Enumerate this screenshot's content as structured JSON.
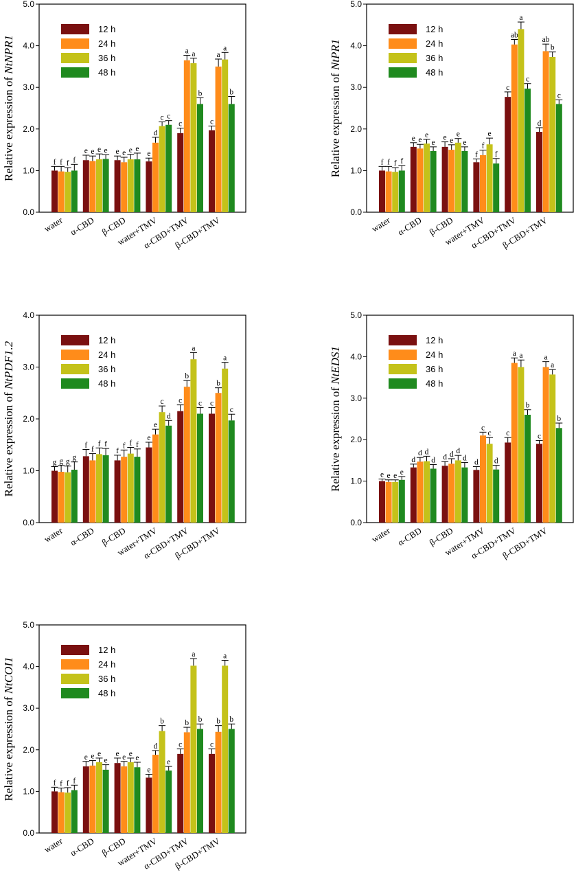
{
  "legend": [
    "12 h",
    "24 h",
    "36 h",
    "48 h"
  ],
  "colors": [
    "#7a1010",
    "#ff8c1a",
    "#c4c21a",
    "#1f8a1f"
  ],
  "chart_data": [
    {
      "type": "bar",
      "ylabel_prefix": "Relative expression of ",
      "gene": "NtNPR1",
      "ylim": [
        0,
        5
      ],
      "yticks": [
        "0.0",
        "1.0",
        "2.0",
        "3.0",
        "4.0",
        "5.0"
      ],
      "categories": [
        "water",
        "α-CBD",
        "β-CBD",
        "water+TMV",
        "α-CBD+TMV",
        "β-CBD+TMV"
      ],
      "series": [
        {
          "name": "12 h",
          "values": [
            1.0,
            1.25,
            1.25,
            1.22,
            1.9,
            1.97
          ],
          "errors": [
            0.1,
            0.12,
            0.1,
            0.08,
            0.12,
            0.1
          ],
          "letters": [
            "f",
            "e",
            "e",
            "e",
            "c",
            "c"
          ]
        },
        {
          "name": "24 h",
          "values": [
            0.98,
            1.23,
            1.2,
            1.67,
            3.65,
            3.5
          ],
          "errors": [
            0.12,
            0.12,
            0.12,
            0.13,
            0.12,
            0.18
          ],
          "letters": [
            "f",
            "e",
            "e",
            "d",
            "a",
            "a"
          ]
        },
        {
          "name": "36 h",
          "values": [
            0.97,
            1.27,
            1.27,
            2.07,
            3.58,
            3.67
          ],
          "errors": [
            0.1,
            0.13,
            0.12,
            0.1,
            0.12,
            0.17
          ],
          "letters": [
            "f",
            "e",
            "e",
            "c",
            "a",
            "a"
          ]
        },
        {
          "name": "48 h",
          "values": [
            1.0,
            1.28,
            1.27,
            2.1,
            2.6,
            2.6
          ],
          "errors": [
            0.15,
            0.1,
            0.15,
            0.1,
            0.15,
            0.18
          ],
          "letters": [
            "f",
            "e",
            "e",
            "c",
            "b",
            "b"
          ]
        }
      ]
    },
    {
      "type": "bar",
      "ylabel_prefix": "Relative expression of ",
      "gene": "NtPR1",
      "ylim": [
        0,
        5
      ],
      "yticks": [
        "0.0",
        "1.0",
        "2.0",
        "3.0",
        "4.0",
        "5.0"
      ],
      "categories": [
        "water",
        "α-CBD",
        "β-CBD",
        "water+TMV",
        "α-CBD+TMV",
        "β-CBD+TMV"
      ],
      "series": [
        {
          "name": "12 h",
          "values": [
            1.0,
            1.57,
            1.57,
            1.2,
            2.77,
            1.93
          ],
          "errors": [
            0.1,
            0.1,
            0.12,
            0.08,
            0.12,
            0.1
          ],
          "letters": [
            "f",
            "e",
            "e",
            "f",
            "c",
            "d"
          ]
        },
        {
          "name": "24 h",
          "values": [
            0.98,
            1.53,
            1.5,
            1.37,
            4.03,
            3.87
          ],
          "errors": [
            0.12,
            0.1,
            0.12,
            0.12,
            0.12,
            0.17
          ],
          "letters": [
            "f",
            "e",
            "e",
            "f",
            "ab",
            "ab"
          ]
        },
        {
          "name": "36 h",
          "values": [
            0.97,
            1.65,
            1.67,
            1.63,
            4.4,
            3.73
          ],
          "errors": [
            0.1,
            0.1,
            0.1,
            0.15,
            0.17,
            0.12
          ],
          "letters": [
            "f",
            "e",
            "e",
            "e",
            "a",
            "b"
          ]
        },
        {
          "name": "48 h",
          "values": [
            1.0,
            1.47,
            1.47,
            1.17,
            2.97,
            2.6
          ],
          "errors": [
            0.12,
            0.1,
            0.1,
            0.12,
            0.12,
            0.1
          ],
          "letters": [
            "f",
            "e",
            "e",
            "f",
            "c",
            "c"
          ]
        }
      ]
    },
    {
      "type": "bar",
      "ylabel_prefix": "Relative expression of ",
      "gene": "NtPDF1.2",
      "ylim": [
        0,
        4
      ],
      "yticks": [
        "0.0",
        "1.0",
        "2.0",
        "3.0",
        "4.0"
      ],
      "categories": [
        "water",
        "α-CBD",
        "β-CBD",
        "water+TMV",
        "α-CBD+TMV",
        "β-CBD+TMV"
      ],
      "series": [
        {
          "name": "12 h",
          "values": [
            1.0,
            1.28,
            1.2,
            1.45,
            2.15,
            2.1
          ],
          "errors": [
            0.08,
            0.13,
            0.1,
            0.1,
            0.12,
            0.12
          ],
          "letters": [
            "g",
            "f",
            "f",
            "e",
            "c",
            "c"
          ]
        },
        {
          "name": "24 h",
          "values": [
            0.98,
            1.2,
            1.27,
            1.7,
            2.62,
            2.5
          ],
          "errors": [
            0.12,
            0.13,
            0.13,
            0.1,
            0.12,
            0.1
          ],
          "letters": [
            "g",
            "f",
            "f",
            "e",
            "b",
            "b"
          ]
        },
        {
          "name": "36 h",
          "values": [
            0.97,
            1.32,
            1.33,
            2.13,
            3.15,
            2.97
          ],
          "errors": [
            0.12,
            0.12,
            0.12,
            0.12,
            0.13,
            0.12
          ],
          "letters": [
            "g",
            "f",
            "f",
            "c",
            "a",
            "a"
          ]
        },
        {
          "name": "48 h",
          "values": [
            1.02,
            1.3,
            1.27,
            1.87,
            2.1,
            1.97
          ],
          "errors": [
            0.15,
            0.13,
            0.15,
            0.1,
            0.12,
            0.12
          ],
          "letters": [
            "g",
            "f",
            "f",
            "d",
            "c",
            "c"
          ]
        }
      ]
    },
    {
      "type": "bar",
      "ylabel_prefix": "Relative expression of ",
      "gene": "NtEDS1",
      "ylim": [
        0,
        5
      ],
      "yticks": [
        "0.0",
        "1.0",
        "2.0",
        "3.0",
        "4.0",
        "5.0"
      ],
      "categories": [
        "water",
        "α-CBD",
        "β-CBD",
        "water+TMV",
        "α-CBD+TMV",
        "β-CBD+TMV"
      ],
      "series": [
        {
          "name": "12 h",
          "values": [
            1.0,
            1.33,
            1.37,
            1.27,
            1.93,
            1.9
          ],
          "errors": [
            0.05,
            0.08,
            0.1,
            0.08,
            0.12,
            0.08
          ],
          "letters": [
            "e",
            "d",
            "d",
            "d",
            "c",
            "c"
          ]
        },
        {
          "name": "24 h",
          "values": [
            0.98,
            1.47,
            1.42,
            2.1,
            3.85,
            3.75
          ],
          "errors": [
            0.05,
            0.1,
            0.12,
            0.08,
            0.12,
            0.13
          ],
          "letters": [
            "e",
            "d",
            "d",
            "c",
            "a",
            "a"
          ]
        },
        {
          "name": "36 h",
          "values": [
            0.98,
            1.48,
            1.5,
            1.9,
            3.75,
            3.57
          ],
          "errors": [
            0.05,
            0.12,
            0.12,
            0.15,
            0.17,
            0.12
          ],
          "letters": [
            "e",
            "d",
            "d",
            "c",
            "a",
            "a"
          ]
        },
        {
          "name": "48 h",
          "values": [
            1.03,
            1.3,
            1.33,
            1.28,
            2.6,
            2.28
          ],
          "errors": [
            0.08,
            0.1,
            0.12,
            0.1,
            0.12,
            0.12
          ],
          "letters": [
            "e",
            "d",
            "d",
            "d",
            "b",
            "b"
          ]
        }
      ]
    },
    {
      "type": "bar",
      "ylabel_prefix": "Relative expression of ",
      "gene": "NtCOI1",
      "ylim": [
        0,
        5
      ],
      "yticks": [
        "0.0",
        "1.0",
        "2.0",
        "3.0",
        "4.0",
        "5.0"
      ],
      "categories": [
        "water",
        "α-CBD",
        "β-CBD",
        "water+TMV",
        "α-CBD+TMV",
        "β-CBD+TMV"
      ],
      "series": [
        {
          "name": "12 h",
          "values": [
            1.0,
            1.6,
            1.68,
            1.33,
            1.9,
            1.9
          ],
          "errors": [
            0.1,
            0.12,
            0.12,
            0.08,
            0.12,
            0.12
          ],
          "letters": [
            "f",
            "e",
            "e",
            "e",
            "c",
            "c"
          ]
        },
        {
          "name": "24 h",
          "values": [
            0.98,
            1.62,
            1.6,
            1.88,
            2.42,
            2.43
          ],
          "errors": [
            0.1,
            0.12,
            0.12,
            0.1,
            0.12,
            0.15
          ],
          "letters": [
            "f",
            "e",
            "e",
            "d",
            "b",
            "b"
          ]
        },
        {
          "name": "36 h",
          "values": [
            0.97,
            1.7,
            1.7,
            2.45,
            4.02,
            4.02
          ],
          "errors": [
            0.12,
            0.1,
            0.1,
            0.13,
            0.17,
            0.13
          ],
          "letters": [
            "f",
            "e",
            "e",
            "b",
            "a",
            "a"
          ]
        },
        {
          "name": "48 h",
          "values": [
            1.03,
            1.52,
            1.58,
            1.5,
            2.5,
            2.5
          ],
          "errors": [
            0.12,
            0.12,
            0.12,
            0.1,
            0.12,
            0.12
          ],
          "letters": [
            "f",
            "e",
            "e",
            "e",
            "b",
            "b"
          ]
        }
      ]
    }
  ]
}
